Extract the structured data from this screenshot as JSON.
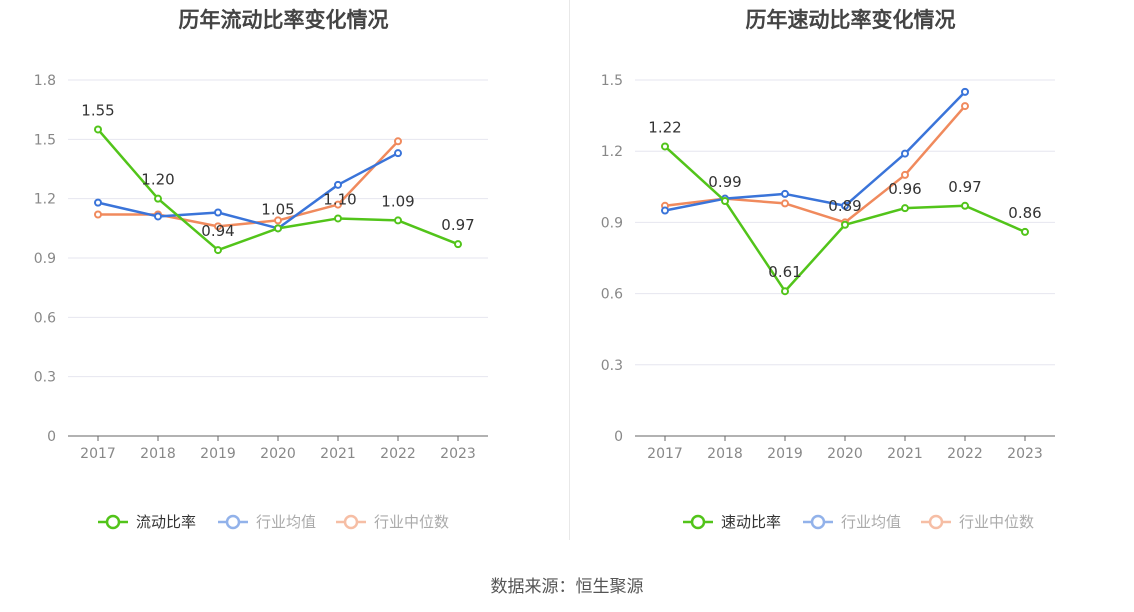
{
  "colors": {
    "primary": "#52c41a",
    "mean": "#3a74d9",
    "median": "#f08a5d",
    "grid": "#e6e6ef",
    "axis": "#666666",
    "label": "#333333",
    "tick": "#888888"
  },
  "source_text": "数据来源：恒生聚源",
  "chart_data": [
    {
      "type": "line",
      "title": "历年流动比率变化情况",
      "categories": [
        "2017",
        "2018",
        "2019",
        "2020",
        "2021",
        "2022",
        "2023"
      ],
      "ylim": [
        0,
        1.8
      ],
      "yticks": [
        "0",
        "0.3",
        "0.6",
        "0.9",
        "1.2",
        "1.5",
        "1.8"
      ],
      "grid": true,
      "legend_position": "bottom",
      "series": [
        {
          "name": "流动比率",
          "values": [
            1.55,
            1.2,
            0.94,
            1.05,
            1.1,
            1.09,
            0.97
          ],
          "labels": [
            "1.55",
            "1.20",
            "0.94",
            "1.05",
            "1.10",
            "1.09",
            "0.97"
          ]
        },
        {
          "name": "行业均值",
          "values": [
            1.18,
            1.11,
            1.13,
            1.05,
            1.27,
            1.43,
            null
          ]
        },
        {
          "name": "行业中位数",
          "values": [
            1.12,
            1.12,
            1.06,
            1.09,
            1.17,
            1.49,
            null
          ]
        }
      ]
    },
    {
      "type": "line",
      "title": "历年速动比率变化情况",
      "categories": [
        "2017",
        "2018",
        "2019",
        "2020",
        "2021",
        "2022",
        "2023"
      ],
      "ylim": [
        0,
        1.5
      ],
      "yticks": [
        "0",
        "0.3",
        "0.6",
        "0.9",
        "1.2",
        "1.5"
      ],
      "grid": true,
      "legend_position": "bottom",
      "series": [
        {
          "name": "速动比率",
          "values": [
            1.22,
            0.99,
            0.61,
            0.89,
            0.96,
            0.97,
            0.86
          ],
          "labels": [
            "1.22",
            "0.99",
            "0.61",
            "0.89",
            "0.96",
            "0.97",
            "0.86"
          ]
        },
        {
          "name": "行业均值",
          "values": [
            0.95,
            1.0,
            1.02,
            0.97,
            1.19,
            1.45,
            null
          ]
        },
        {
          "name": "行业中位数",
          "values": [
            0.97,
            1.0,
            0.98,
            0.9,
            1.1,
            1.39,
            null
          ]
        }
      ]
    }
  ]
}
